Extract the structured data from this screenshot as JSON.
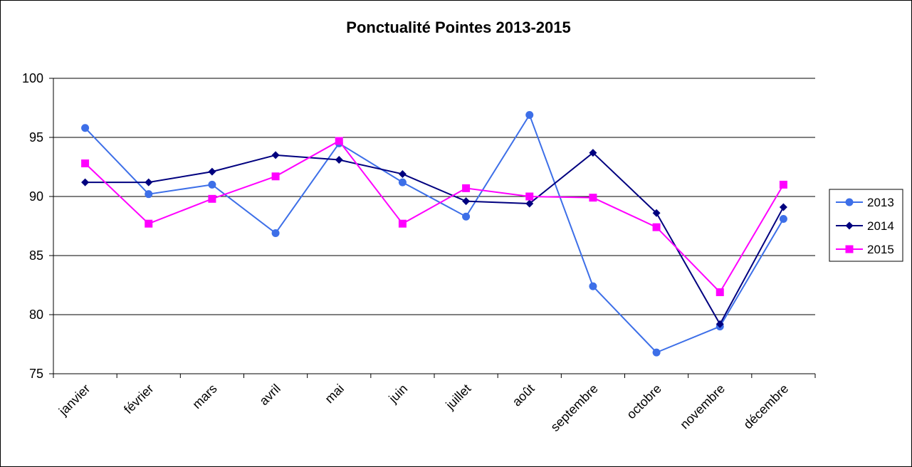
{
  "chart_data": {
    "type": "line",
    "title": "Ponctualité Pointes 2013-2015",
    "xlabel": "",
    "ylabel": "",
    "categories": [
      "janvier",
      "février",
      "mars",
      "avril",
      "mai",
      "juin",
      "juillet",
      "août",
      "septembre",
      "octobre",
      "novembre",
      "décembre"
    ],
    "ylim": [
      75,
      100
    ],
    "yticks": [
      75,
      80,
      85,
      90,
      95,
      100
    ],
    "grid": true,
    "legend_position": "right",
    "series": [
      {
        "name": "2013",
        "color": "#3D6FE8",
        "marker": "circle",
        "values": [
          95.8,
          90.2,
          91.0,
          86.9,
          94.5,
          91.2,
          88.3,
          96.9,
          82.4,
          76.8,
          79.0,
          88.1
        ]
      },
      {
        "name": "2014",
        "color": "#00007F",
        "marker": "diamond",
        "values": [
          91.2,
          91.2,
          92.1,
          93.5,
          93.1,
          91.9,
          89.6,
          89.4,
          93.7,
          88.6,
          79.2,
          89.1
        ]
      },
      {
        "name": "2015",
        "color": "#FF00FF",
        "marker": "square",
        "values": [
          92.8,
          87.7,
          89.8,
          91.7,
          94.7,
          87.7,
          90.7,
          90.0,
          89.9,
          87.4,
          81.9,
          91.0
        ]
      }
    ]
  }
}
